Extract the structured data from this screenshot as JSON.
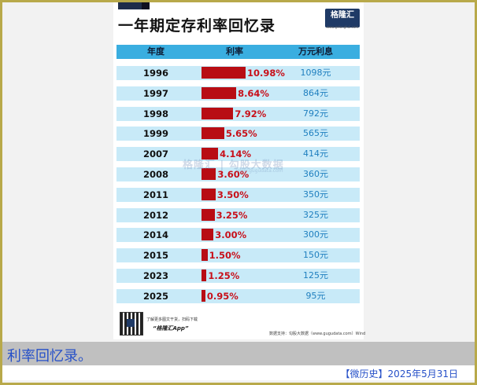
{
  "title": "一年期定存利率回忆录",
  "logo": {
    "text": "格隆汇",
    "sub": "www.gelonghui.com"
  },
  "headers": [
    "年度",
    "利率",
    "万元利息"
  ],
  "chart_data": {
    "type": "bar",
    "title": "一年期定存利率回忆录",
    "categories": [
      "1996",
      "1997",
      "1998",
      "1999",
      "2007",
      "2008",
      "2011",
      "2012",
      "2014",
      "2015",
      "2023",
      "2025"
    ],
    "values": [
      10.98,
      8.64,
      7.92,
      5.65,
      4.14,
      3.6,
      3.5,
      3.25,
      3.0,
      1.5,
      1.25,
      0.95
    ],
    "rate_labels": [
      "10.98%",
      "8.64%",
      "7.92%",
      "5.65%",
      "4.14%",
      "3.60%",
      "3.50%",
      "3.25%",
      "3.00%",
      "1.50%",
      "1.25%",
      "0.95%"
    ],
    "interest_labels": [
      "1098元",
      "864元",
      "792元",
      "565元",
      "414元",
      "360元",
      "350元",
      "325元",
      "300元",
      "150元",
      "125元",
      "95元"
    ],
    "bar_color": "#b80d14",
    "row_color": "#c8eaf8",
    "header_color": "#3aaee0"
  },
  "watermark": {
    "main": "格隆汇 | 勾股大数据",
    "sub": "www.gugudata.com"
  },
  "footer_left": {
    "line1": "了解更多图文干货，扫码下载",
    "line2": "“格隆汇App”"
  },
  "footer_right": "数据支持：勾股大数据（www.gugudata.com）Wind",
  "caption": "利率回忆录。",
  "source_tag": "【微历史】2025年5月31日"
}
